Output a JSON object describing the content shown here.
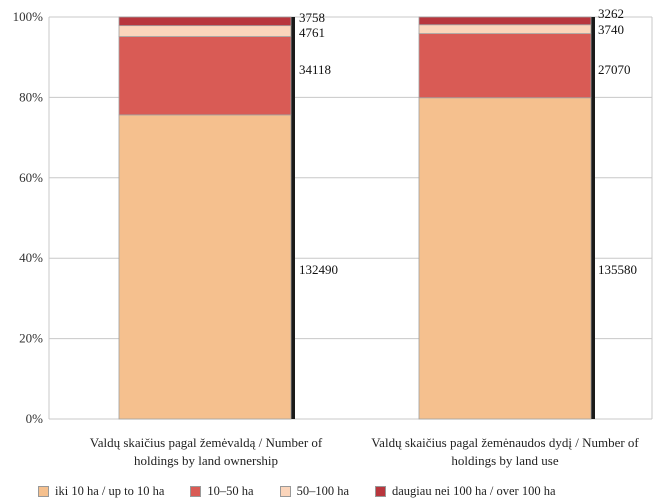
{
  "chart_data": {
    "type": "bar",
    "stacked": true,
    "normalized": true,
    "categories": [
      "Valdų skaičius pagal žemėvaldą / Number of holdings by land ownership",
      "Valdų skaičius pagal žemėnaudos dydį / Number of holdings by land use"
    ],
    "category_lines": [
      [
        "Valdų skaičius pagal žemėvaldą / Number of",
        "holdings by land ownership"
      ],
      [
        "Valdų skaičius pagal žemėnaudos dydį / Number of",
        "holdings by land use"
      ]
    ],
    "series": [
      {
        "name": "iki 10 ha / up to 10 ha",
        "color": "#f5c08e",
        "values": [
          132490,
          135580
        ]
      },
      {
        "name": "10–50 ha",
        "color": "#d95b55",
        "values": [
          34118,
          27070
        ]
      },
      {
        "name": "50–100 ha",
        "color": "#fbd5bb",
        "values": [
          4761,
          3740
        ]
      },
      {
        "name": "daugiau nei 100 ha / over 100 ha",
        "color": "#b8363d",
        "values": [
          3758,
          3262
        ]
      }
    ],
    "yticks": [
      "0%",
      "20%",
      "40%",
      "60%",
      "80%",
      "100%"
    ],
    "ylim": [
      0,
      100
    ],
    "grid": true,
    "legend_position": "bottom"
  }
}
